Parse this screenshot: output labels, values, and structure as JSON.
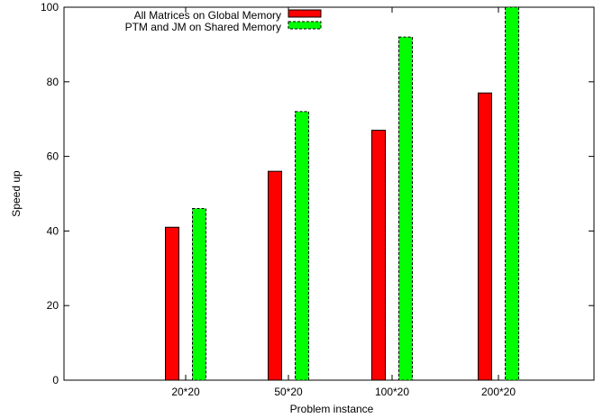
{
  "chart_data": {
    "type": "bar",
    "title": "",
    "xlabel": "Problem instance",
    "ylabel": "Speed up",
    "ylim": [
      0,
      100
    ],
    "yticks": [
      0,
      20,
      40,
      60,
      80,
      100
    ],
    "categories": [
      "20*20",
      "50*20",
      "100*20",
      "200*20"
    ],
    "legend_position": "top-right",
    "series": [
      {
        "name": "All Matrices on Global Memory",
        "values": [
          41,
          56,
          67,
          77
        ],
        "color": "#ff0000",
        "edge": "solid"
      },
      {
        "name": "PTM and JM on Shared Memory",
        "values": [
          46,
          72,
          92,
          100
        ],
        "color": "#00ff00",
        "edge": "dashed"
      }
    ]
  }
}
